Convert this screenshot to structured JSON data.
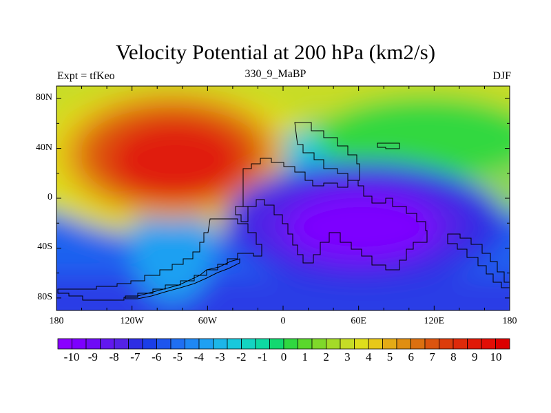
{
  "title": "Velocity Potential at 200 hPa (km2/s)",
  "subtitle_left": "Expt = tfKeo",
  "subtitle_center": "330_9_MaBP",
  "subtitle_right": "DJF",
  "map": {
    "lon_range": [
      -180,
      180
    ],
    "lat_range": [
      -90,
      90
    ],
    "lat_ticks": [
      {
        "value": 80,
        "label": "80N"
      },
      {
        "value": 40,
        "label": "40N"
      },
      {
        "value": 0,
        "label": "0"
      },
      {
        "value": -40,
        "label": "40S"
      },
      {
        "value": -80,
        "label": "80S"
      }
    ],
    "lon_ticks": [
      {
        "value": -180,
        "label": "180"
      },
      {
        "value": -120,
        "label": "120W"
      },
      {
        "value": -60,
        "label": "60W"
      },
      {
        "value": 0,
        "label": "0"
      },
      {
        "value": 60,
        "label": "60E"
      },
      {
        "value": 120,
        "label": "120E"
      },
      {
        "value": 180,
        "label": "180"
      }
    ],
    "field_features": [
      {
        "name": "positive-maximum",
        "lon": -78,
        "lat": 25,
        "amplitude": 10.5
      },
      {
        "name": "negative-minimum",
        "lon": 60,
        "lat": -15,
        "amplitude": -10.2
      }
    ]
  },
  "colorbar": {
    "labels": [
      "-10",
      "-9",
      "-8",
      "-7",
      "-6",
      "-5",
      "-4",
      "-3",
      "-2",
      "-1",
      "0",
      "1",
      "2",
      "3",
      "4",
      "5",
      "6",
      "7",
      "8",
      "9",
      "10"
    ],
    "colors": [
      "#8a00ff",
      "#7d00ff",
      "#6f0cf6",
      "#6218ef",
      "#5422e6",
      "#2e2ee4",
      "#1a3ee8",
      "#1e55ee",
      "#1f6ff2",
      "#1f88f4",
      "#1ea0f2",
      "#1db6e8",
      "#18c8dc",
      "#14d4c2",
      "#0ed9a2",
      "#12d870",
      "#30d840",
      "#5ad82c",
      "#7fd82a",
      "#a4db28",
      "#c6dd26",
      "#dede1c",
      "#e8c81a",
      "#e4ab16",
      "#e08e12",
      "#dc7010",
      "#dc540e",
      "#dc3c0c",
      "#de2a0a",
      "#e01a08",
      "#e20e06",
      "#dc0000"
    ]
  }
}
